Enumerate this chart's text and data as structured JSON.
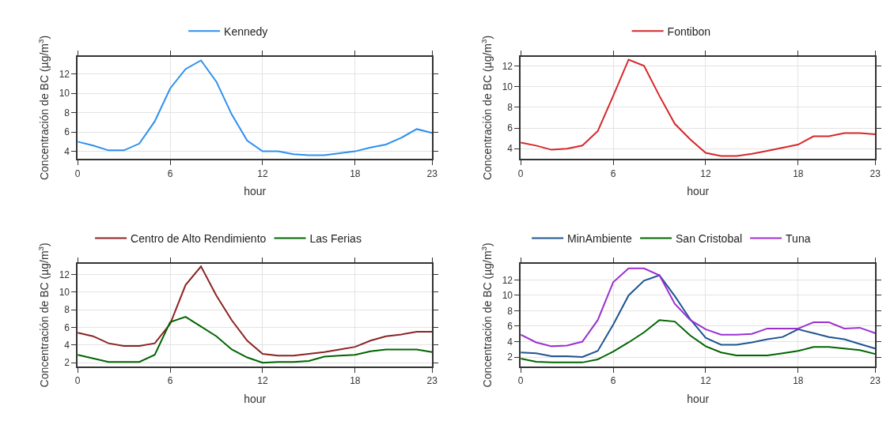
{
  "chart_data": [
    {
      "type": "line",
      "xlabel": "hour",
      "ylabel": "Concentración de BC (µg/m$^{3}$)",
      "x": [
        0,
        1,
        2,
        3,
        4,
        5,
        6,
        7,
        8,
        9,
        10,
        11,
        12,
        13,
        14,
        15,
        16,
        17,
        18,
        19,
        20,
        21,
        22,
        23
      ],
      "xlim": [
        0,
        23
      ],
      "xticks": [
        0,
        6,
        12,
        18,
        23
      ],
      "ylim": [
        3.2,
        13.8
      ],
      "yticks": [
        4,
        6,
        8,
        10,
        12
      ],
      "grid": true,
      "legend": "top",
      "series": [
        {
          "name": "Kennedy",
          "color": "#2d8ff0",
          "values": [
            5.0,
            4.6,
            4.1,
            4.1,
            4.8,
            7.1,
            10.5,
            12.5,
            13.4,
            11.2,
            7.8,
            5.1,
            4.0,
            4.0,
            3.7,
            3.6,
            3.6,
            3.8,
            4.0,
            4.4,
            4.7,
            5.4,
            6.3,
            5.9
          ]
        }
      ]
    },
    {
      "type": "line",
      "xlabel": "hour",
      "ylabel": "Concentración de BC (µg/m$^{3}$)",
      "x": [
        0,
        1,
        2,
        3,
        4,
        5,
        6,
        7,
        8,
        9,
        10,
        11,
        12,
        13,
        14,
        15,
        16,
        17,
        18,
        19,
        20,
        21,
        22,
        23
      ],
      "xlim": [
        0,
        23
      ],
      "xticks": [
        0,
        6,
        12,
        18,
        23
      ],
      "ylim": [
        3.0,
        12.9
      ],
      "yticks": [
        4,
        6,
        8,
        10,
        12
      ],
      "grid": true,
      "legend": "top",
      "series": [
        {
          "name": "Fontibon",
          "color": "#d62728",
          "values": [
            4.6,
            4.3,
            3.9,
            4.0,
            4.3,
            5.7,
            9.1,
            12.6,
            12.0,
            9.1,
            6.4,
            4.9,
            3.6,
            3.3,
            3.3,
            3.5,
            3.8,
            4.1,
            4.4,
            5.2,
            5.2,
            5.5,
            5.5,
            5.4
          ]
        }
      ]
    },
    {
      "type": "line",
      "xlabel": "hour",
      "ylabel": "Concentración de BC (µg/m$^{3}$)",
      "x": [
        0,
        1,
        2,
        3,
        4,
        5,
        6,
        7,
        8,
        9,
        10,
        11,
        12,
        13,
        14,
        15,
        16,
        17,
        18,
        19,
        20,
        21,
        22,
        23
      ],
      "xlim": [
        0,
        23
      ],
      "xticks": [
        0,
        6,
        12,
        18,
        23
      ],
      "ylim": [
        1.6,
        13.2
      ],
      "yticks": [
        2,
        4,
        6,
        8,
        10,
        12
      ],
      "grid": true,
      "legend": "top",
      "series": [
        {
          "name": "Centro de Alto Rendimiento",
          "color": "#8b2323",
          "values": [
            5.4,
            5.0,
            4.2,
            3.9,
            3.9,
            4.2,
            6.4,
            10.8,
            12.9,
            9.6,
            6.8,
            4.5,
            3.0,
            2.8,
            2.8,
            3.0,
            3.2,
            3.5,
            3.8,
            4.5,
            5.0,
            5.2,
            5.5,
            5.5
          ]
        },
        {
          "name": "Las Ferias",
          "color": "#006400",
          "values": [
            2.9,
            2.5,
            2.1,
            2.1,
            2.1,
            2.9,
            6.6,
            7.2,
            6.1,
            5.0,
            3.5,
            2.6,
            2.0,
            2.1,
            2.1,
            2.2,
            2.7,
            2.8,
            2.9,
            3.3,
            3.5,
            3.5,
            3.5,
            3.2
          ]
        }
      ]
    },
    {
      "type": "line",
      "xlabel": "hour",
      "ylabel": "Concentración de BC (µg/m$^{3}$)",
      "x": [
        0,
        1,
        2,
        3,
        4,
        5,
        6,
        7,
        8,
        9,
        10,
        11,
        12,
        13,
        14,
        15,
        16,
        17,
        18,
        19,
        20,
        21,
        22,
        23
      ],
      "xlim": [
        0,
        23
      ],
      "xticks": [
        0,
        6,
        12,
        18,
        23
      ],
      "ylim": [
        0.8,
        14.1
      ],
      "yticks": [
        2,
        4,
        6,
        8,
        10,
        12
      ],
      "grid": true,
      "legend": "top",
      "series": [
        {
          "name": "MinAmbiente",
          "color": "#1f5591",
          "values": [
            2.6,
            2.5,
            2.1,
            2.1,
            2.0,
            2.8,
            6.2,
            10.0,
            11.9,
            12.6,
            9.9,
            6.9,
            4.5,
            3.6,
            3.6,
            3.9,
            4.3,
            4.6,
            5.6,
            5.1,
            4.6,
            4.3,
            3.7,
            3.1
          ]
        },
        {
          "name": "San Cristobal",
          "color": "#006400",
          "values": [
            1.8,
            1.4,
            1.3,
            1.3,
            1.3,
            1.7,
            2.7,
            3.9,
            5.2,
            6.8,
            6.6,
            4.8,
            3.4,
            2.6,
            2.2,
            2.2,
            2.2,
            2.5,
            2.8,
            3.3,
            3.3,
            3.1,
            2.9,
            2.4
          ]
        },
        {
          "name": "Tuna",
          "color": "#9b30d0",
          "values": [
            4.9,
            3.9,
            3.4,
            3.5,
            4.0,
            6.8,
            11.7,
            13.5,
            13.5,
            12.6,
            8.9,
            6.8,
            5.6,
            4.9,
            4.9,
            5.0,
            5.7,
            5.7,
            5.7,
            6.5,
            6.5,
            5.7,
            5.8,
            5.1
          ]
        }
      ]
    }
  ]
}
